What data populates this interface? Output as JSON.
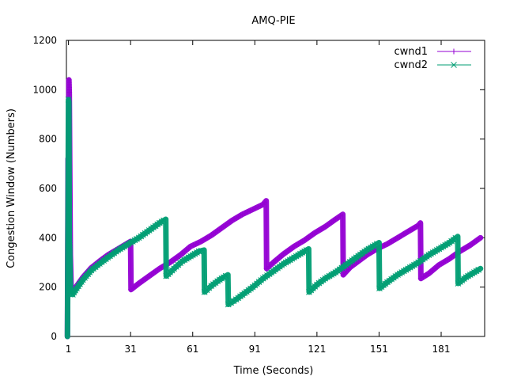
{
  "chart_data": {
    "type": "line",
    "title": "AMQ-PIE",
    "xlabel": "Time (Seconds)",
    "ylabel": "Congestion Window (Numbers)",
    "xlim": [
      0,
      202
    ],
    "ylim": [
      0,
      1200
    ],
    "xticks": [
      1,
      31,
      61,
      91,
      121,
      151,
      181
    ],
    "yticks": [
      0,
      200,
      400,
      600,
      800,
      1000,
      1200
    ],
    "grid": false,
    "legend_position": "top-right",
    "series": [
      {
        "name": "cwnd1",
        "color": "#9400d3",
        "marker": "plus",
        "x": [
          0.5,
          0.8,
          1.0,
          1.2,
          1.4,
          1.6,
          1.9,
          2.3,
          3,
          5,
          8,
          12,
          16,
          20,
          25,
          30,
          31,
          31.2,
          35,
          40,
          45,
          50,
          55,
          60,
          65,
          70,
          75,
          80,
          85,
          90,
          95,
          96.5,
          96.7,
          100,
          105,
          110,
          115,
          120,
          125,
          130,
          133.5,
          133.7,
          137,
          141,
          145,
          150,
          155,
          160,
          165,
          170,
          171,
          171.2,
          175,
          180,
          185,
          190,
          195,
          200
        ],
        "y": [
          0,
          720,
          530,
          1040,
          980,
          700,
          330,
          200,
          180,
          205,
          240,
          278,
          305,
          330,
          355,
          380,
          385,
          190,
          215,
          245,
          275,
          300,
          330,
          365,
          385,
          410,
          440,
          470,
          495,
          515,
          535,
          550,
          275,
          300,
          335,
          365,
          390,
          420,
          445,
          475,
          495,
          250,
          280,
          305,
          330,
          355,
          375,
          400,
          425,
          450,
          460,
          235,
          255,
          290,
          315,
          345,
          370,
          400
        ]
      },
      {
        "name": "cwnd2",
        "color": "#009e73",
        "marker": "cross",
        "x": [
          0.5,
          0.8,
          1.0,
          1.2,
          1.4,
          1.6,
          1.9,
          2.3,
          3,
          5,
          8,
          12,
          16,
          20,
          25,
          30,
          35,
          40,
          45,
          48,
          48.2,
          52,
          56,
          60,
          64,
          66.5,
          66.7,
          70,
          74,
          78,
          78.2,
          82,
          86,
          90,
          95,
          100,
          105,
          110,
          115,
          117,
          117.2,
          121,
          125,
          130,
          135,
          140,
          145,
          150,
          151,
          151.2,
          155,
          160,
          165,
          170,
          175,
          180,
          185,
          189,
          189.2,
          193,
          197,
          200
        ],
        "y": [
          0,
          520,
          960,
          950,
          380,
          350,
          200,
          175,
          170,
          195,
          230,
          268,
          295,
          320,
          350,
          375,
          400,
          430,
          460,
          475,
          245,
          275,
          305,
          325,
          345,
          350,
          180,
          205,
          230,
          250,
          130,
          150,
          175,
          200,
          235,
          265,
          295,
          320,
          345,
          355,
          180,
          210,
          235,
          260,
          290,
          320,
          350,
          375,
          380,
          195,
          220,
          250,
          275,
          300,
          330,
          355,
          380,
          405,
          215,
          240,
          260,
          275
        ]
      }
    ]
  }
}
